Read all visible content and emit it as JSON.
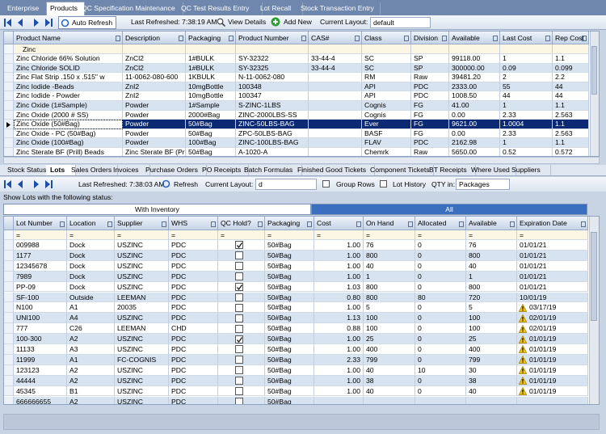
{
  "top_tabs": [
    "Enterprise",
    "Products",
    "QC Specification Maintenance",
    "QC Test Results Entry",
    "Lot Recall",
    "Stock Transaction Entry"
  ],
  "top_active_tab": 1,
  "toolbar1": {
    "auto_refresh": "Auto Refresh",
    "last_refreshed": "Last Refreshed: 7:38:19 AM",
    "view_details": "View Details",
    "add_new": "Add New",
    "layout_label": "Current Layout:",
    "layout_value": "default"
  },
  "grid1": {
    "columns": [
      "Product Name",
      "Description",
      "Packaging",
      "Product Number",
      "CAS#",
      "Class",
      "Division",
      "Available",
      "Last Cost",
      "Rep Cost"
    ],
    "filter_text": "Zinc",
    "selected_row": 7,
    "rows": [
      [
        "Zinc Chloride 66% Solution",
        "ZnCl2",
        "1#BULK",
        "SY-32322",
        "33-44-4",
        "SC",
        "SP",
        "99118.00",
        "1",
        "1.1"
      ],
      [
        "Zinc Chloride SOLID",
        "ZnCl2",
        "1#BULK",
        "SY-32325",
        "33-44-4",
        "SC",
        "SP",
        "300000.00",
        "0.09",
        "0.099"
      ],
      [
        "Zinc Flat Strip .150 x .515\" w",
        "11-0062-080-600",
        "1KBULK",
        "N-11-0062-080",
        null,
        "RM",
        "Raw",
        "39481.20",
        "2",
        "2.2"
      ],
      [
        "Zinc Iodide -Beads",
        "ZnI2",
        "10mgBottle",
        "100348",
        null,
        "API",
        "PDC",
        "2333.00",
        "55",
        "44"
      ],
      [
        "Zinc Iodide - Powder",
        "ZnI2",
        "10mgBottle",
        "100347",
        null,
        "API",
        "PDC",
        "1008.50",
        "44",
        "44"
      ],
      [
        "Zinc Oxide (1#Sample)",
        "Powder",
        "1#Sample",
        "S-ZINC-1LBS",
        null,
        "Cognis",
        "FG",
        "41.00",
        "1",
        "1.1"
      ],
      [
        "Zinc Oxide (2000 # SS)",
        "Powder",
        "2000#Bag",
        "ZINC-2000LBS-SS",
        null,
        "Cognis",
        "FG",
        "0.00",
        "2.33",
        "2.563"
      ],
      [
        "Zinc Oxide (50#Bag)",
        "Powder",
        "50#Bag",
        "ZINC-50LBS-BAG",
        null,
        "Ever",
        "FG",
        "9621.00",
        "1.0004",
        "1.1"
      ],
      [
        "Zinc Oxide - PC (50#Bag)",
        "Powder",
        "50#Bag",
        "ZPC-50LBS-BAG",
        null,
        "BASF",
        "FG",
        "0.00",
        "2.33",
        "2.563"
      ],
      [
        "Zinc Oxide (100#Bag)",
        "Powder",
        "100#Bag",
        "ZINC-100LBS-BAG",
        null,
        "FLAV",
        "PDC",
        "2162.98",
        "1",
        "1.1"
      ],
      [
        "Zinc Sterate BF (Prill) Beads",
        "Zinc Sterate BF (Pri",
        "50#Bag",
        "A-1020-A",
        null,
        "Chemrk",
        "Raw",
        "5650.00",
        "0.52",
        "0.572"
      ]
    ]
  },
  "bottom_tabs": [
    "Stock Status",
    "Lots",
    "Sales Orders",
    "Invoices",
    "Purchase Orders",
    "PO Receipts",
    "Batch Formulas",
    "Finished Good Tickets",
    "Component Tickets",
    "BT Receipts",
    "Where Used",
    "Suppliers"
  ],
  "bottom_active_tab": 1,
  "toolbar2": {
    "last_refreshed": "Last Refreshed: 7:38:03 AM",
    "refresh": "Refresh",
    "layout_label": "Current Layout:",
    "layout_value": "d",
    "group_rows": "Group Rows",
    "lot_history": "Lot History",
    "qty_label": "QTY in:",
    "qty_value": "Packages"
  },
  "status_prompt": "Show Lots with the following status:",
  "status_buttons": [
    "With Inventory",
    "All"
  ],
  "status_selected": 1,
  "grid2": {
    "columns": [
      "Lot Number",
      "Location",
      "Supplier",
      "WHS",
      "QC Hold?",
      "Packaging",
      "Cost",
      "On Hand",
      "Allocated",
      "Available",
      "Expiration Date"
    ],
    "filter_row": [
      "=",
      "=",
      "=",
      "=",
      "=",
      "=",
      "=",
      "=",
      "=",
      "=",
      "="
    ],
    "rows": [
      [
        "009988",
        "Dock",
        "USZINC",
        "PDC",
        true,
        "50#Bag",
        "1.00",
        "76",
        "0",
        "76",
        "01/01/21"
      ],
      [
        "1177",
        "Dock",
        "USZINC",
        "PDC",
        false,
        "50#Bag",
        "1.00",
        "800",
        "0",
        "800",
        "01/01/21"
      ],
      [
        "12345678",
        "Dock",
        "USZINC",
        "PDC",
        false,
        "50#Bag",
        "1.00",
        "40",
        "0",
        "40",
        "01/01/21"
      ],
      [
        "7989",
        "Dock",
        "USZINC",
        "PDC",
        false,
        "50#Bag",
        "1.00",
        "1",
        "0",
        "1",
        "01/01/21"
      ],
      [
        "PP-09",
        "Dock",
        "USZINC",
        "PDC",
        true,
        "50#Bag",
        "1.03",
        "800",
        "0",
        "800",
        "01/01/21"
      ],
      [
        "SF-100",
        "Outside",
        "LEEMAN",
        "PDC",
        false,
        "50#Bag",
        "0.80",
        "800",
        "80",
        "720",
        "10/01/19"
      ],
      [
        "N100",
        "A1",
        "20035",
        "PDC",
        false,
        "50#Bag",
        "1.00",
        "5",
        "0",
        "5",
        "03/17/19"
      ],
      [
        "UNI100",
        "A4",
        "USZINC",
        "PDC",
        false,
        "50#Bag",
        "1.13",
        "100",
        "0",
        "100",
        "02/01/19"
      ],
      [
        "777",
        "C26",
        "LEEMAN",
        "CHD",
        false,
        "50#Bag",
        "0.88",
        "100",
        "0",
        "100",
        "02/01/19"
      ],
      [
        "100-300",
        "A2",
        "USZINC",
        "PDC",
        true,
        "50#Bag",
        "1.00",
        "25",
        "0",
        "25",
        "01/01/19"
      ],
      [
        "11133",
        "A3",
        "USZINC",
        "PDC",
        false,
        "50#Bag",
        "1.00",
        "400",
        "0",
        "400",
        "01/01/19"
      ],
      [
        "11999",
        "A1",
        "FC-COGNIS",
        "PDC",
        false,
        "50#Bag",
        "2.33",
        "799",
        "0",
        "799",
        "01/01/19"
      ],
      [
        "123123",
        "A2",
        "USZINC",
        "PDC",
        false,
        "50#Bag",
        "1.00",
        "40",
        "10",
        "30",
        "01/01/19"
      ],
      [
        "44444",
        "A2",
        "USZINC",
        "PDC",
        false,
        "50#Bag",
        "1.00",
        "38",
        "0",
        "38",
        "01/01/19"
      ],
      [
        "45345",
        "B1",
        "USZINC",
        "PDC",
        false,
        "50#Bag",
        "1.00",
        "40",
        "0",
        "40",
        "01/01/19"
      ],
      [
        "666666655",
        "A2",
        "USZINC",
        "PDC",
        false,
        "50#Bag",
        null,
        null,
        null,
        null,
        null
      ]
    ],
    "expiry_warning": [
      false,
      false,
      false,
      false,
      false,
      false,
      true,
      true,
      true,
      true,
      true,
      true,
      true,
      true,
      true,
      false
    ]
  }
}
